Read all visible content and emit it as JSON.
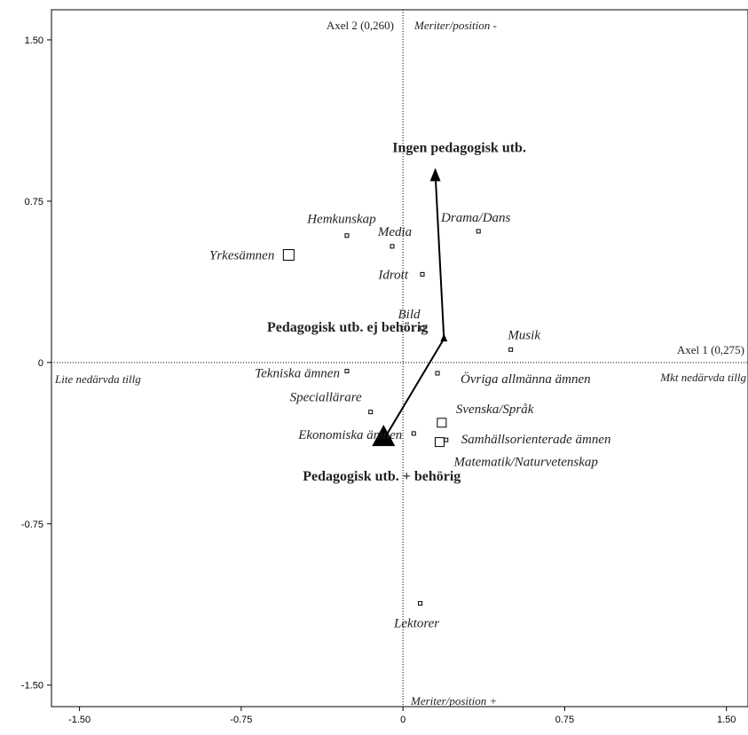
{
  "chart_data": {
    "type": "scatter",
    "title": "",
    "xlim": [
      -1.63,
      1.6
    ],
    "ylim": [
      -1.6,
      1.64
    ],
    "x_ticks": [
      {
        "value": -1.5,
        "label": "-1.50"
      },
      {
        "value": -0.75,
        "label": "-0.75"
      },
      {
        "value": 0,
        "label": "0"
      },
      {
        "value": 0.75,
        "label": "0.75"
      },
      {
        "value": 1.5,
        "label": "1.50"
      }
    ],
    "y_ticks": [
      {
        "value": 1.5,
        "label": "1.50"
      },
      {
        "value": 0.75,
        "label": "0.75"
      },
      {
        "value": 0,
        "label": "0"
      },
      {
        "value": -0.75,
        "label": "-0.75"
      },
      {
        "value": -1.5,
        "label": "-1.50"
      }
    ],
    "grid": false,
    "axis_labels": {
      "axis1": "Axel 1 (0,275)",
      "axis2": "Axel 2 (0,260)",
      "left": "Lite nedärvda tillg",
      "right": "Mkt nedärvda tillg",
      "top": "Meriter/position -",
      "bottom": "Meriter/position +"
    },
    "points": [
      {
        "label": "Yrkesämnen",
        "x": -0.53,
        "y": 0.5,
        "size": "large",
        "marker": "square"
      },
      {
        "label": "Hemkunskap",
        "x": -0.26,
        "y": 0.59,
        "size": "small",
        "marker": "square"
      },
      {
        "label": "Media",
        "x": -0.05,
        "y": 0.54,
        "size": "small",
        "marker": "square"
      },
      {
        "label": "Drama/Dans",
        "x": 0.35,
        "y": 0.61,
        "size": "small",
        "marker": "square"
      },
      {
        "label": "Idrott",
        "x": 0.09,
        "y": 0.41,
        "size": "small",
        "marker": "square"
      },
      {
        "label": "Bild",
        "x": 0.09,
        "y": 0.16,
        "size": "small",
        "marker": "square"
      },
      {
        "label": "Musik",
        "x": 0.5,
        "y": 0.06,
        "size": "small",
        "marker": "square"
      },
      {
        "label": "Tekniska ämnen",
        "x": -0.26,
        "y": -0.04,
        "size": "small",
        "marker": "square"
      },
      {
        "label": "Övriga allmänna ämnen",
        "x": 0.16,
        "y": -0.05,
        "size": "small",
        "marker": "square"
      },
      {
        "label": "Speciallärare",
        "x": -0.15,
        "y": -0.23,
        "size": "small",
        "marker": "square"
      },
      {
        "label": "Svenska/Språk",
        "x": 0.18,
        "y": -0.28,
        "size": "medium",
        "marker": "square"
      },
      {
        "label": "Ekonomiska ämnen",
        "x": 0.05,
        "y": -0.33,
        "size": "small",
        "marker": "square"
      },
      {
        "label": "Samhällsorienterade ämnen",
        "x": 0.2,
        "y": -0.36,
        "size": "small",
        "marker": "square"
      },
      {
        "label": "Matematik/Naturvetenskap",
        "x": 0.17,
        "y": -0.37,
        "size": "medium",
        "marker": "square"
      },
      {
        "label": "Lektorer",
        "x": 0.08,
        "y": -1.12,
        "size": "small",
        "marker": "square"
      }
    ],
    "path": [
      {
        "label": "Pedagogisk utb. + behörig",
        "x": -0.09,
        "y": -0.36,
        "marker": "triangle-large"
      },
      {
        "label": "Pedagogisk utb. ej behörig",
        "x": 0.19,
        "y": 0.11,
        "marker": "triangle-small"
      },
      {
        "label": "Ingen pedagogisk utb.",
        "x": 0.15,
        "y": 0.88,
        "marker": "arrowhead"
      }
    ]
  }
}
